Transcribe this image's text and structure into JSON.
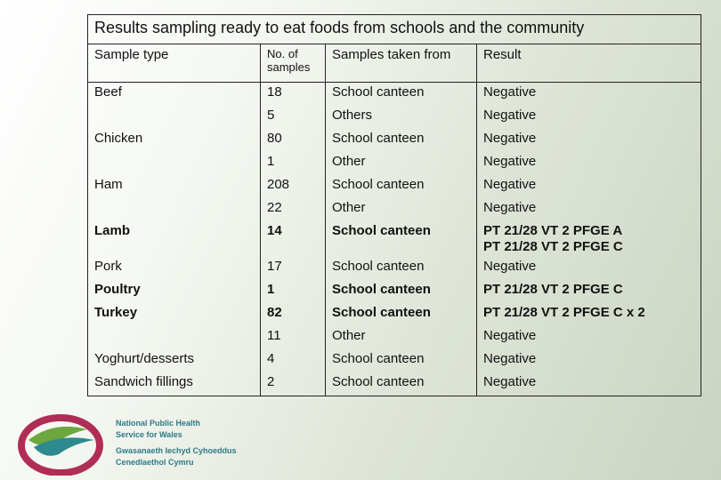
{
  "table": {
    "title": "Results sampling ready to eat foods from schools and the community",
    "header": [
      "Sample type",
      "No. of samples",
      "Samples taken from",
      "Result"
    ],
    "rows": [
      {
        "cells": [
          "Beef",
          "18",
          "School canteen",
          "Negative"
        ],
        "bold": false
      },
      {
        "cells": [
          null,
          "5",
          "Others",
          "Negative"
        ],
        "bold": false
      },
      {
        "cells": [
          "Chicken",
          "80",
          "School canteen",
          "Negative"
        ],
        "bold": false
      },
      {
        "cells": [
          null,
          "1",
          "Other",
          "Negative"
        ],
        "bold": false
      },
      {
        "cells": [
          "Ham",
          "208",
          "School canteen",
          "Negative"
        ],
        "bold": false
      },
      {
        "cells": [
          null,
          "22",
          "Other",
          "Negative"
        ],
        "bold": false
      },
      {
        "cells": [
          "Lamb",
          "14",
          "School canteen",
          "PT 21/28 VT 2 PFGE A\nPT 21/28 VT 2 PFGE C"
        ],
        "bold": true
      },
      {
        "cells": [
          "Pork",
          "17",
          "School canteen",
          "Negative"
        ],
        "bold": false
      },
      {
        "cells": [
          "Poultry",
          "1",
          "School canteen",
          "PT 21/28 VT 2 PFGE C"
        ],
        "bold": true
      },
      {
        "cells": [
          "Turkey",
          "82",
          "School canteen",
          "PT 21/28 VT 2 PFGE C x 2"
        ],
        "bold": true
      },
      {
        "cells": [
          null,
          "11",
          "Other",
          "Negative"
        ],
        "bold": false
      },
      {
        "cells": [
          "Yoghurt/desserts",
          "4",
          "School canteen",
          "Negative"
        ],
        "bold": false
      },
      {
        "cells": [
          "Sandwich fillings",
          "2",
          "School canteen",
          "Negative"
        ],
        "bold": false
      }
    ]
  },
  "logo": {
    "lines": [
      "National Public Health",
      "Service for Wales",
      "Gwasanaeth Iechyd Cyhoeddus",
      "Cenedlaethol Cymru"
    ]
  }
}
